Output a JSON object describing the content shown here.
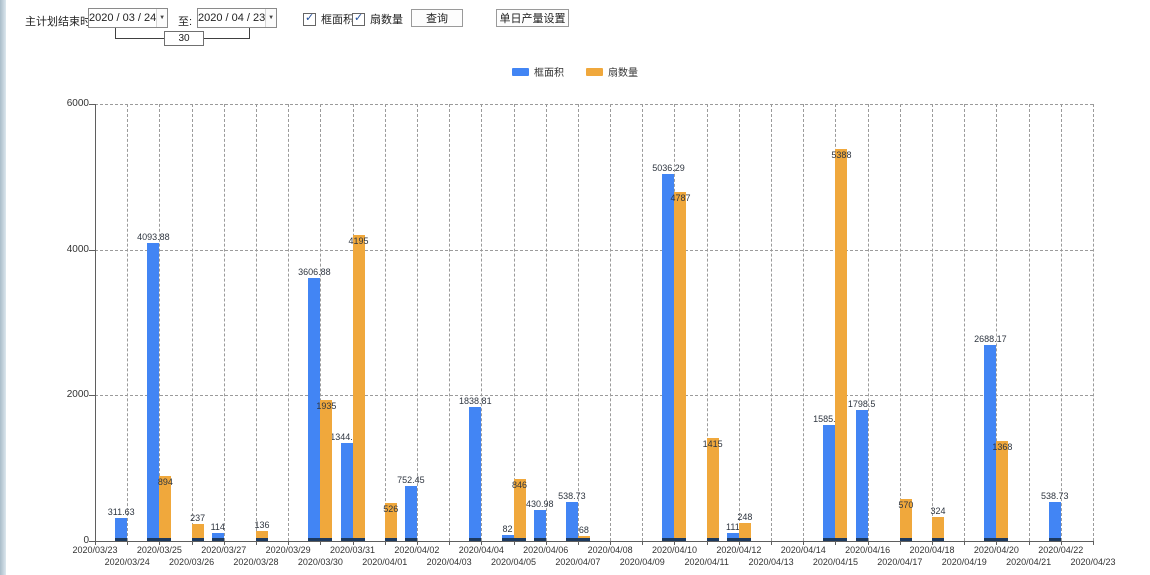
{
  "toolbar": {
    "plan_end_label": "主计划结束时间:",
    "date_from": "2020 / 03 / 24",
    "to_label": "至:",
    "date_to": "2020 / 04 / 23",
    "interval_days": "30",
    "checkboxes": [
      {
        "label": "框面积",
        "checked": true
      },
      {
        "label": "扇数量",
        "checked": true
      }
    ],
    "query_button": "查询",
    "daily_output_button": "单日产量设置"
  },
  "legend": {
    "items": [
      {
        "label": "框面积",
        "color": "#4285F4"
      },
      {
        "label": "扇数量",
        "color": "#F0A83C"
      }
    ]
  },
  "chart_data": {
    "type": "bar",
    "title": "",
    "xlabel": "",
    "ylabel": "",
    "ylim": [
      0,
      6000
    ],
    "yticks": [
      0,
      2000,
      4000,
      6000
    ],
    "grid": true,
    "legend_position": "top",
    "bar_base_color": "#1D3A5F",
    "categories": [
      "2020/03/23",
      "2020/03/24",
      "2020/03/25",
      "2020/03/26",
      "2020/03/27",
      "2020/03/28",
      "2020/03/29",
      "2020/03/30",
      "2020/03/31",
      "2020/04/01",
      "2020/04/02",
      "2020/04/03",
      "2020/04/04",
      "2020/04/05",
      "2020/04/06",
      "2020/04/07",
      "2020/04/08",
      "2020/04/09",
      "2020/04/10",
      "2020/04/11",
      "2020/04/12",
      "2020/04/13",
      "2020/04/14",
      "2020/04/15",
      "2020/04/16",
      "2020/04/17",
      "2020/04/18",
      "2020/04/19",
      "2020/04/20",
      "2020/04/21",
      "2020/04/22",
      "2020/04/23"
    ],
    "series": [
      {
        "name": "框面积",
        "color": "#4285F4",
        "values": [
          null,
          311.63,
          4093.88,
          null,
          114,
          null,
          null,
          3606.88,
          1344.95,
          null,
          752.45,
          null,
          1838.81,
          82,
          430.98,
          538.73,
          null,
          null,
          5036.29,
          null,
          111,
          null,
          null,
          1585.96,
          1798.5,
          null,
          null,
          null,
          2688.17,
          null,
          538.73,
          null
        ]
      },
      {
        "name": "扇数量",
        "color": "#F0A83C",
        "values": [
          null,
          null,
          894,
          237,
          null,
          136,
          null,
          1935,
          4195,
          526,
          null,
          null,
          null,
          846,
          null,
          68,
          null,
          null,
          4787,
          1415,
          248,
          null,
          null,
          5388,
          null,
          570,
          324,
          null,
          1368,
          null,
          null,
          null
        ]
      }
    ]
  }
}
